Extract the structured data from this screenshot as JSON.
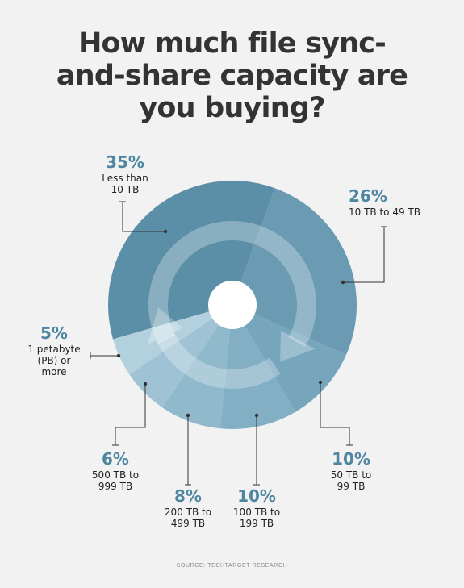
{
  "title_lines": [
    "How much file sync-",
    "and-share capacity are",
    "you buying?"
  ],
  "source": "SOURCE: TECHTARGET RESEARCH",
  "chart_data": {
    "type": "pie",
    "title": "How much file sync-and-share capacity are you buying?",
    "slices": [
      {
        "label": "Less than\n10 TB",
        "value": 35,
        "pct": "35%",
        "color": "#5b8fa8"
      },
      {
        "label": "10 TB to 49 TB",
        "value": 26,
        "pct": "26%",
        "color": "#6a9bb3"
      },
      {
        "label": "50 TB to\n99 TB",
        "value": 10,
        "pct": "10%",
        "color": "#77a6bc"
      },
      {
        "label": "100 TB to\n199 TB",
        "value": 10,
        "pct": "10%",
        "color": "#83afc4"
      },
      {
        "label": "200 TB to\n499 TB",
        "value": 8,
        "pct": "8%",
        "color": "#90b9cc"
      },
      {
        "label": "500 TB to\n999 TB",
        "value": 6,
        "pct": "6%",
        "color": "#9fc3d4"
      },
      {
        "label": "1 petabyte\n(PB) or\nmore",
        "value": 5,
        "pct": "5%",
        "color": "#b3d0de"
      }
    ]
  }
}
